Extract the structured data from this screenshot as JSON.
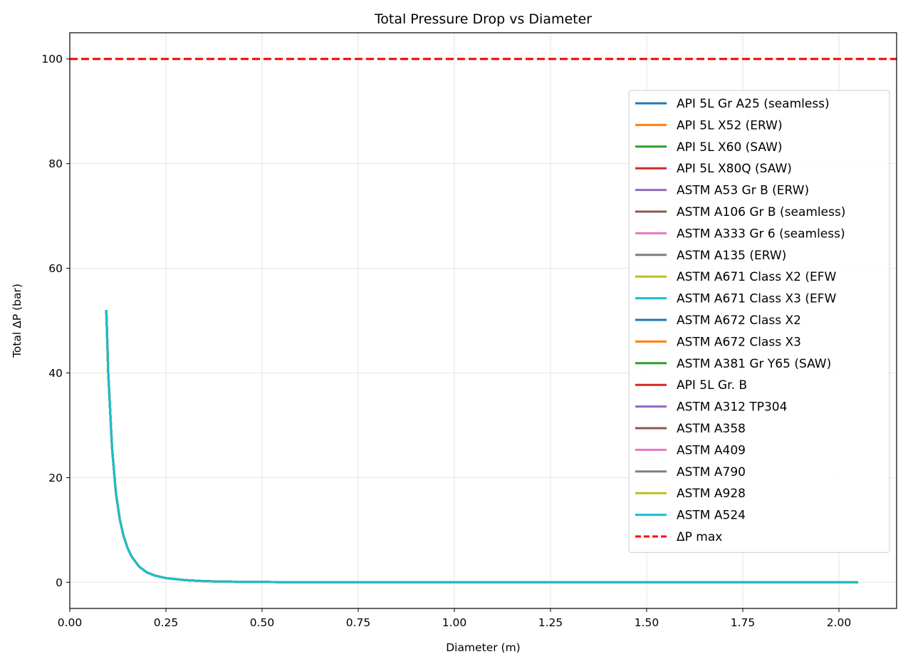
{
  "chart_data": {
    "type": "line",
    "title": "Total Pressure Drop vs Diameter",
    "xlabel": "Diameter (m)",
    "ylabel": "Total ΔP (bar)",
    "xlim": [
      0.0,
      2.15
    ],
    "ylim": [
      -5,
      105
    ],
    "xticks": [
      0.0,
      0.25,
      0.5,
      0.75,
      1.0,
      1.25,
      1.5,
      1.75,
      2.0
    ],
    "xtick_labels": [
      "0.00",
      "0.25",
      "0.50",
      "0.75",
      "1.00",
      "1.25",
      "1.50",
      "1.75",
      "2.00"
    ],
    "yticks": [
      0,
      20,
      40,
      60,
      80,
      100
    ],
    "ytick_labels": [
      "0",
      "20",
      "40",
      "60",
      "80",
      "100"
    ],
    "grid": true,
    "legend_position": "upper right",
    "curve": {
      "x": [
        0.095,
        0.1,
        0.11,
        0.12,
        0.13,
        0.14,
        0.15,
        0.16,
        0.18,
        0.2,
        0.22,
        0.25,
        0.3,
        0.35,
        0.4,
        0.5,
        0.6,
        0.75,
        1.0,
        1.25,
        1.5,
        1.75,
        2.0,
        2.05
      ],
      "y": [
        52.0,
        40.0,
        25.5,
        17.0,
        12.0,
        8.8,
        6.6,
        5.0,
        3.0,
        1.9,
        1.3,
        0.8,
        0.4,
        0.2,
        0.12,
        0.05,
        0.02,
        0.01,
        0.0,
        0.0,
        0.0,
        0.0,
        0.0,
        0.0
      ]
    },
    "series": [
      {
        "name": "API 5L Gr A25 (seamless)",
        "color": "#1f77b4"
      },
      {
        "name": "API 5L X52 (ERW)",
        "color": "#ff7f0e"
      },
      {
        "name": "API 5L X60 (SAW)",
        "color": "#2ca02c"
      },
      {
        "name": "API 5L X80Q (SAW)",
        "color": "#d62728"
      },
      {
        "name": "ASTM A53 Gr B (ERW)",
        "color": "#9467bd"
      },
      {
        "name": "ASTM A106 Gr B (seamless)",
        "color": "#8c564b"
      },
      {
        "name": "ASTM A333 Gr 6 (seamless)",
        "color": "#e377c2"
      },
      {
        "name": "ASTM A135 (ERW)",
        "color": "#7f7f7f"
      },
      {
        "name": "ASTM A671 Class X2 (EFW",
        "color": "#bcbd22"
      },
      {
        "name": "ASTM A671 Class X3 (EFW",
        "color": "#17becf"
      },
      {
        "name": "ASTM A672 Class X2",
        "color": "#1f77b4"
      },
      {
        "name": "ASTM A672 Class X3",
        "color": "#ff7f0e"
      },
      {
        "name": "ASTM A381 Gr Y65 (SAW)",
        "color": "#2ca02c"
      },
      {
        "name": "API 5L Gr. B",
        "color": "#d62728"
      },
      {
        "name": "ASTM A312 TP304",
        "color": "#9467bd"
      },
      {
        "name": "ASTM A358",
        "color": "#8c564b"
      },
      {
        "name": "ASTM A409",
        "color": "#e377c2"
      },
      {
        "name": "ASTM A790",
        "color": "#7f7f7f"
      },
      {
        "name": "ASTM A928",
        "color": "#bcbd22"
      },
      {
        "name": "ASTM A524",
        "color": "#17becf"
      }
    ],
    "reference_line": {
      "name": "ΔP max",
      "y": 100,
      "color": "#ff0000",
      "style": "dashed"
    }
  }
}
